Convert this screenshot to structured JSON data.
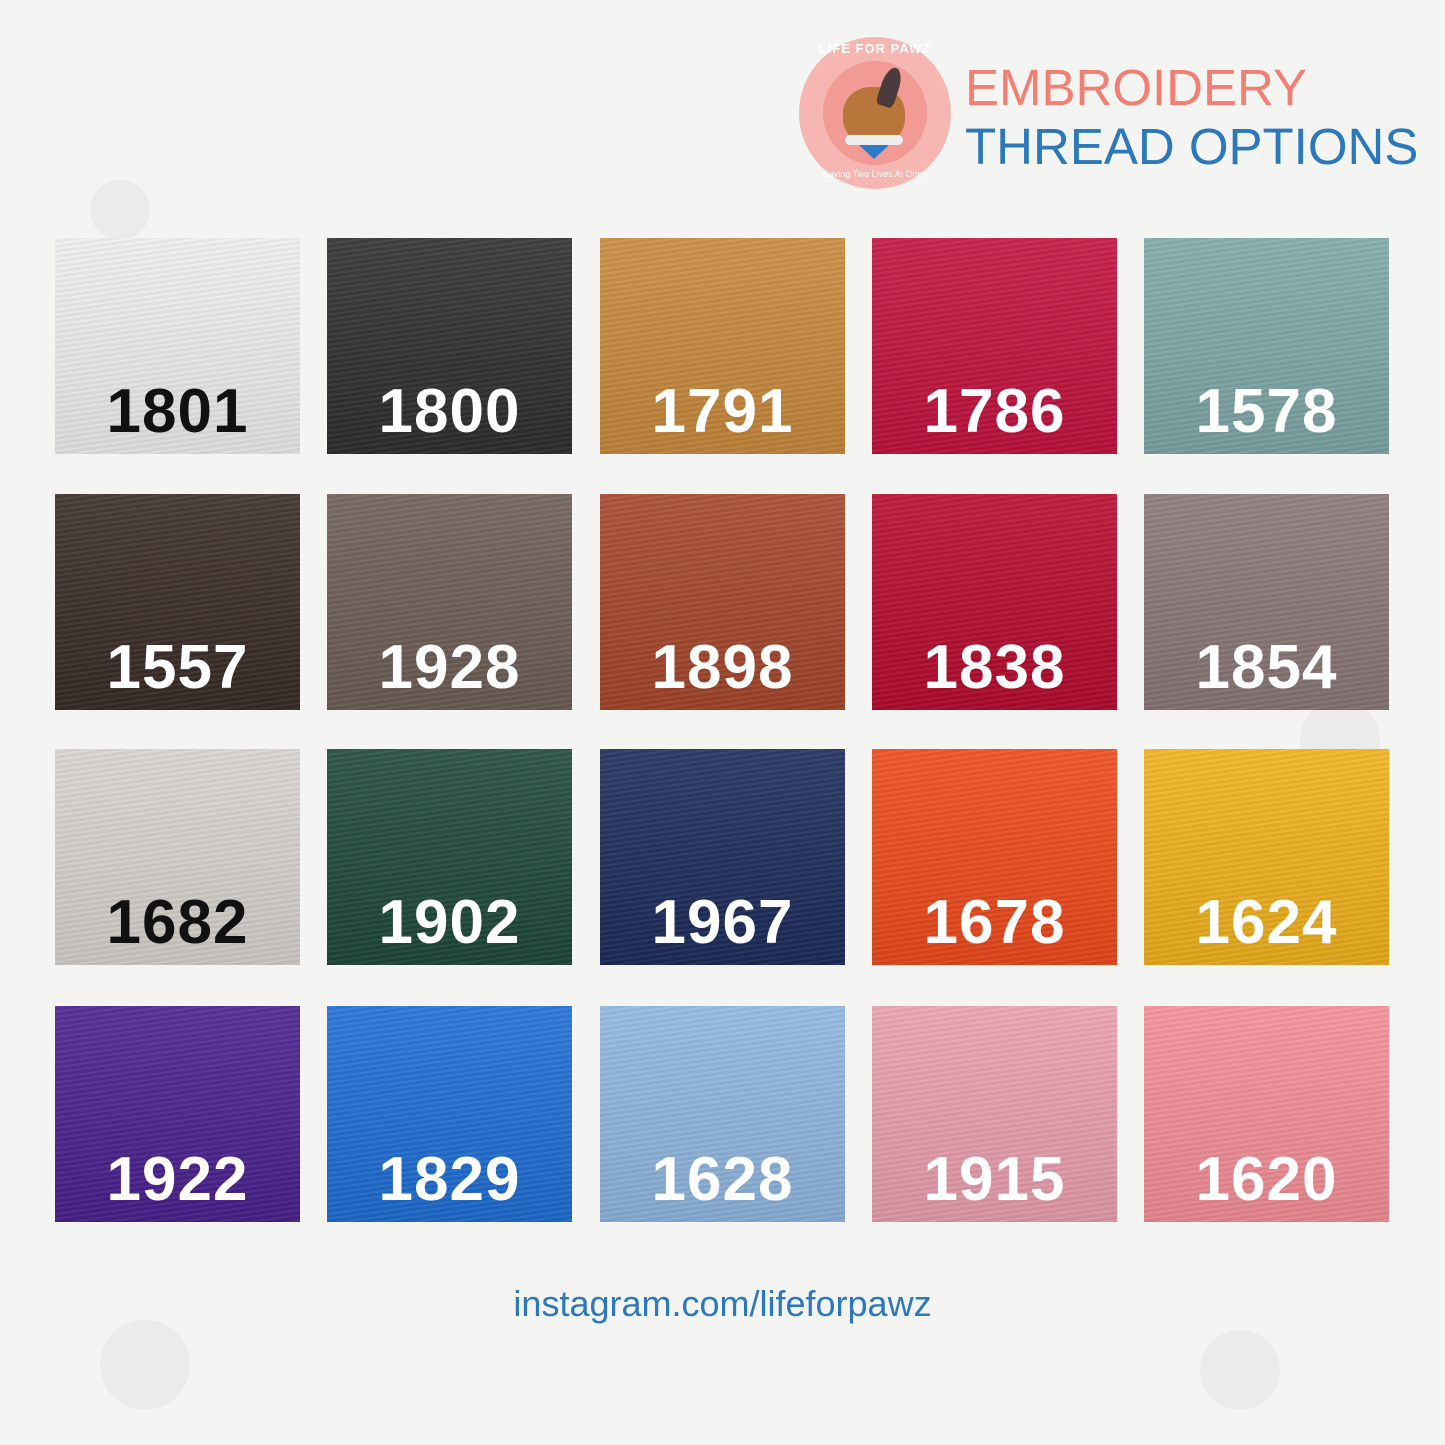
{
  "logo": {
    "top_text": "LIFE FOR PAWZ",
    "bottom_text": "Saving Two Lives At Once"
  },
  "title": {
    "line1": "EMBROIDERY",
    "line2": "THREAD OPTIONS"
  },
  "threads": [
    {
      "code": "1801",
      "color": "#efefef",
      "text_color": "#111111"
    },
    {
      "code": "1800",
      "color": "#2f2f2f",
      "text_color": "#ffffff"
    },
    {
      "code": "1791",
      "color": "#c98a3c",
      "text_color": "#ffffff"
    },
    {
      "code": "1786",
      "color": "#c4123f",
      "text_color": "#ffffff"
    },
    {
      "code": "1578",
      "color": "#7fa9a8",
      "text_color": "#ffffff"
    },
    {
      "code": "1557",
      "color": "#3a2c28",
      "text_color": "#ffffff"
    },
    {
      "code": "1928",
      "color": "#6d5f57",
      "text_color": "#ffffff"
    },
    {
      "code": "1898",
      "color": "#a6472c",
      "text_color": "#ffffff"
    },
    {
      "code": "1838",
      "color": "#b80b2e",
      "text_color": "#ffffff"
    },
    {
      "code": "1854",
      "color": "#8b7878",
      "text_color": "#ffffff"
    },
    {
      "code": "1682",
      "color": "#d9d4cf",
      "text_color": "#111111"
    },
    {
      "code": "1902",
      "color": "#1f4a3a",
      "text_color": "#ffffff"
    },
    {
      "code": "1967",
      "color": "#1c2c5c",
      "text_color": "#ffffff"
    },
    {
      "code": "1678",
      "color": "#f04a1c",
      "text_color": "#ffffff"
    },
    {
      "code": "1624",
      "color": "#f2b31c",
      "text_color": "#ffffff"
    },
    {
      "code": "1922",
      "color": "#4a2190",
      "text_color": "#ffffff"
    },
    {
      "code": "1829",
      "color": "#1f6fd6",
      "text_color": "#ffffff"
    },
    {
      "code": "1628",
      "color": "#8fb7e0",
      "text_color": "#ffffff"
    },
    {
      "code": "1915",
      "color": "#eca0b0",
      "text_color": "#ffffff"
    },
    {
      "code": "1620",
      "color": "#f58f98",
      "text_color": "#ffffff"
    }
  ],
  "footer": {
    "link": "instagram.com/lifeforpawz"
  }
}
